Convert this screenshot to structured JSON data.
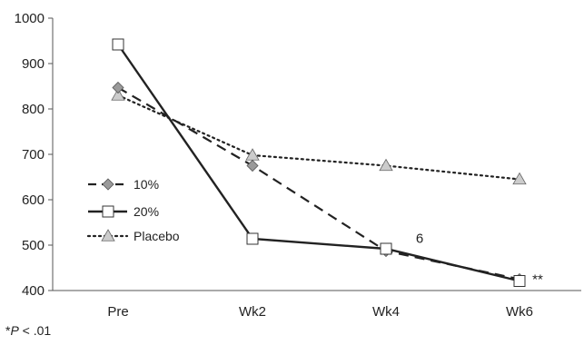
{
  "chart_data": {
    "type": "line",
    "categories": [
      "Pre",
      "Wk2",
      "Wk4",
      "Wk6"
    ],
    "ylim": [
      400,
      1000
    ],
    "yticks": [
      400,
      500,
      600,
      700,
      800,
      900,
      1000
    ],
    "grid": false,
    "legend_position": "middle-left",
    "series": [
      {
        "name": "10%",
        "values": [
          847,
          675,
          487,
          425
        ],
        "line": "dashed",
        "marker": "diamond",
        "color": "#222222",
        "marker_fill": "#9a9a9a"
      },
      {
        "name": "20%",
        "values": [
          942,
          514,
          492,
          421
        ],
        "line": "solid",
        "marker": "square",
        "color": "#222222",
        "marker_fill": "#ffffff"
      },
      {
        "name": "Placebo",
        "values": [
          830,
          698,
          675,
          645
        ],
        "line": "dotted",
        "marker": "triangle",
        "color": "#222222",
        "marker_fill": "#cccccc"
      }
    ],
    "annotations": [
      {
        "text": "6",
        "category": "Wk4",
        "y": 515
      },
      {
        "text": "**",
        "category": "Wk6",
        "y": 425
      }
    ],
    "footnote": {
      "symbol": "*",
      "var": "P",
      "rest": " < .01"
    }
  }
}
